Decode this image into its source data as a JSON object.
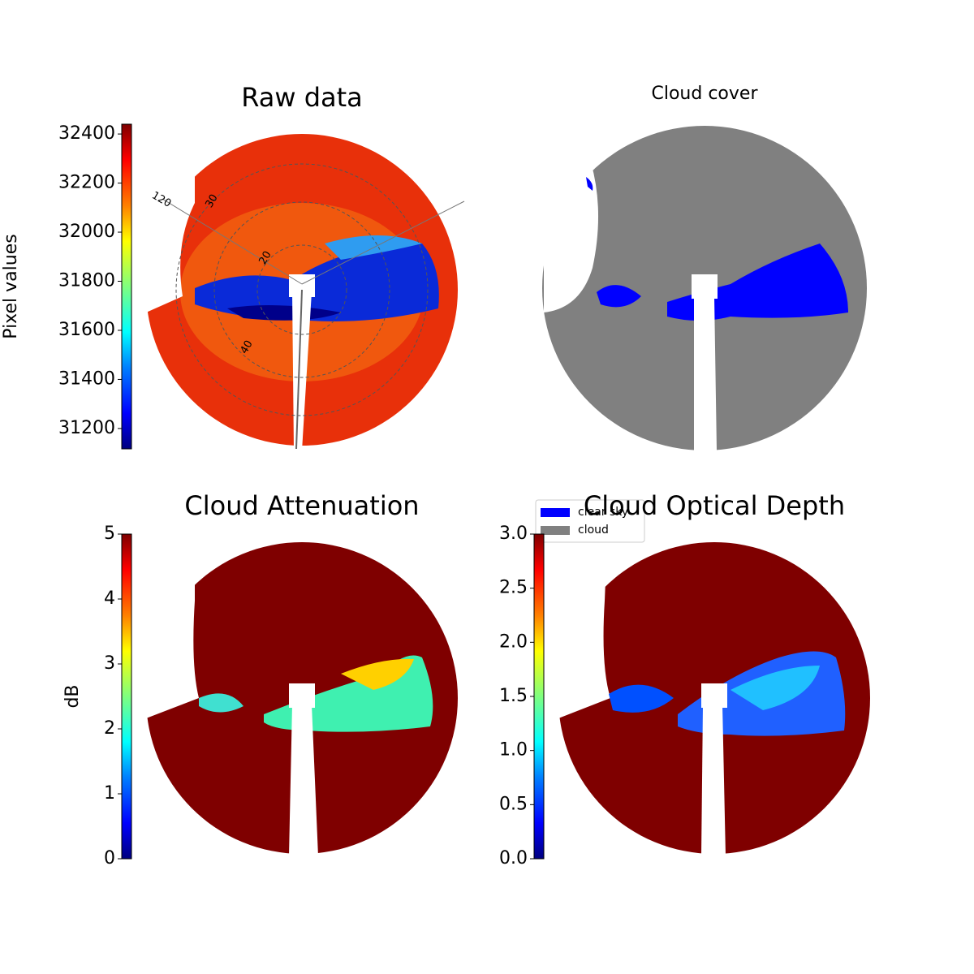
{
  "chart_data": [
    {
      "type": "image",
      "title": "Raw data",
      "polar_labels": [
        "120",
        "30",
        "20",
        "40"
      ],
      "colorbar": {
        "label": "Pixel values",
        "colormap": "jet",
        "lim": [
          31117,
          32440
        ],
        "ticks": [
          31200,
          31400,
          31600,
          31800,
          32000,
          32200,
          32400
        ]
      }
    },
    {
      "type": "image",
      "title": "Cloud cover",
      "legend": [
        {
          "name": "clear sky",
          "color": "#0000ff"
        },
        {
          "name": "cloud",
          "color": "#808080"
        }
      ]
    },
    {
      "type": "image",
      "title": "Cloud Attenuation",
      "colorbar": {
        "label": "dB",
        "colormap": "jet",
        "lim": [
          0,
          5
        ],
        "ticks": [
          0,
          1,
          2,
          3,
          4,
          5
        ]
      }
    },
    {
      "type": "image",
      "title": "Cloud Optical Depth",
      "colorbar": {
        "colormap": "jet",
        "lim": [
          0,
          3
        ],
        "ticks": [
          {
            "value": 0,
            "label": "0.0"
          },
          {
            "value": 0.5,
            "label": "0.5"
          },
          {
            "value": 1,
            "label": "1.0"
          },
          {
            "value": 1.5,
            "label": "1.5"
          },
          {
            "value": 2,
            "label": "2.0"
          },
          {
            "value": 2.5,
            "label": "2.5"
          },
          {
            "value": 3,
            "label": "3.0"
          }
        ]
      }
    }
  ]
}
